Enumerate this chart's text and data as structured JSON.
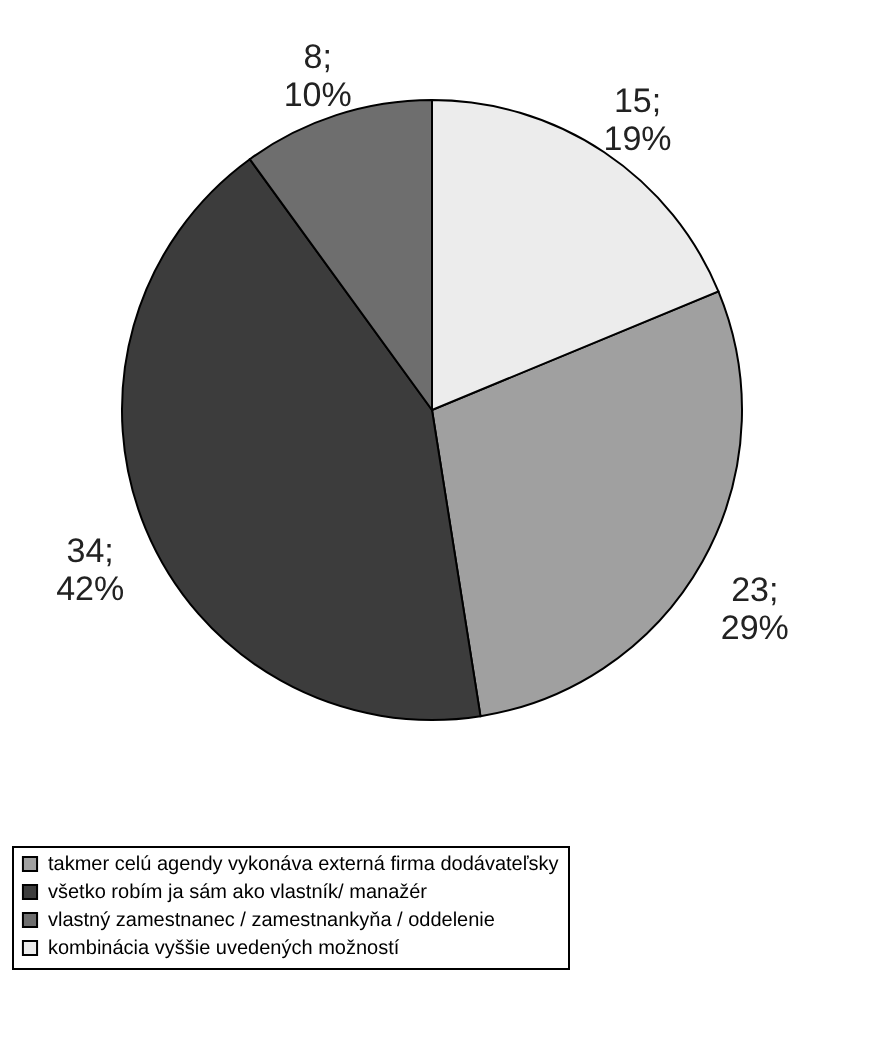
{
  "chart_data": {
    "type": "pie",
    "categories": [
      "takmer celú agendy vykonáva externá firma dodávateľsky",
      "všetko robím ja sám ako vlastník/ manažér",
      "vlastný zamestnanec / zamestnankyňa / oddelenie",
      "kombinácia vyššie uvedených možností"
    ],
    "values": [
      23,
      34,
      8,
      15
    ],
    "colors": [
      "#a0a0a0",
      "#3c3c3c",
      "#6e6e6e",
      "#ececec"
    ],
    "value_labels": [
      "23; 29%",
      "34; 42%",
      "8; 10%",
      "15; 19%"
    ],
    "legend": "bottom"
  }
}
